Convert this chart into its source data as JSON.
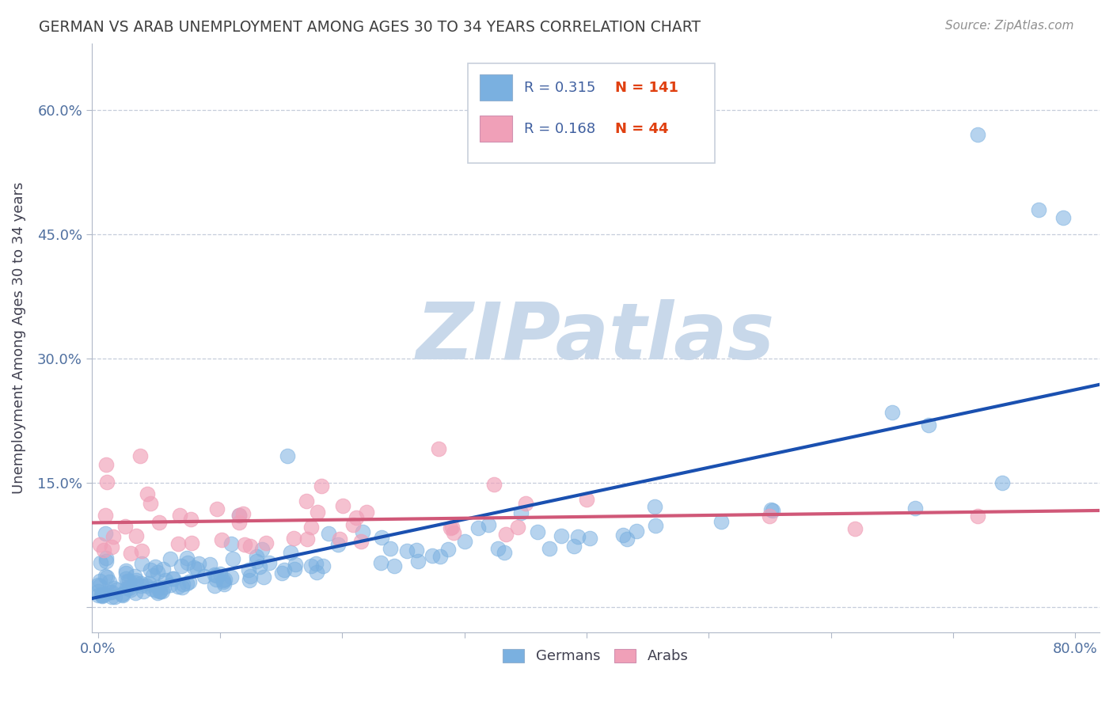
{
  "title": "GERMAN VS ARAB UNEMPLOYMENT AMONG AGES 30 TO 34 YEARS CORRELATION CHART",
  "source": "Source: ZipAtlas.com",
  "ylabel": "Unemployment Among Ages 30 to 34 years",
  "xlim": [
    -0.005,
    0.82
  ],
  "ylim": [
    -0.03,
    0.68
  ],
  "xticks": [
    0.0,
    0.1,
    0.2,
    0.3,
    0.4,
    0.5,
    0.6,
    0.7,
    0.8
  ],
  "xticklabels": [
    "0.0%",
    "",
    "",
    "",
    "",
    "",
    "",
    "",
    "80.0%"
  ],
  "ytick_positions": [
    0.0,
    0.15,
    0.3,
    0.45,
    0.6
  ],
  "ytick_labels": [
    "",
    "15.0%",
    "30.0%",
    "45.0%",
    "60.0%"
  ],
  "german_R": 0.315,
  "german_N": 141,
  "arab_R": 0.168,
  "arab_N": 44,
  "german_color": "#7ab0e0",
  "arab_color": "#f0a0b8",
  "german_line_color": "#1a50b0",
  "arab_line_color": "#d05878",
  "watermark_color": "#c8d8ea",
  "background_color": "#ffffff",
  "grid_color": "#c0c8d8",
  "title_color": "#404040",
  "legend_r_color": "#4060a0",
  "legend_n_color": "#e04010",
  "tick_color": "#5070a0",
  "source_color": "#909090"
}
